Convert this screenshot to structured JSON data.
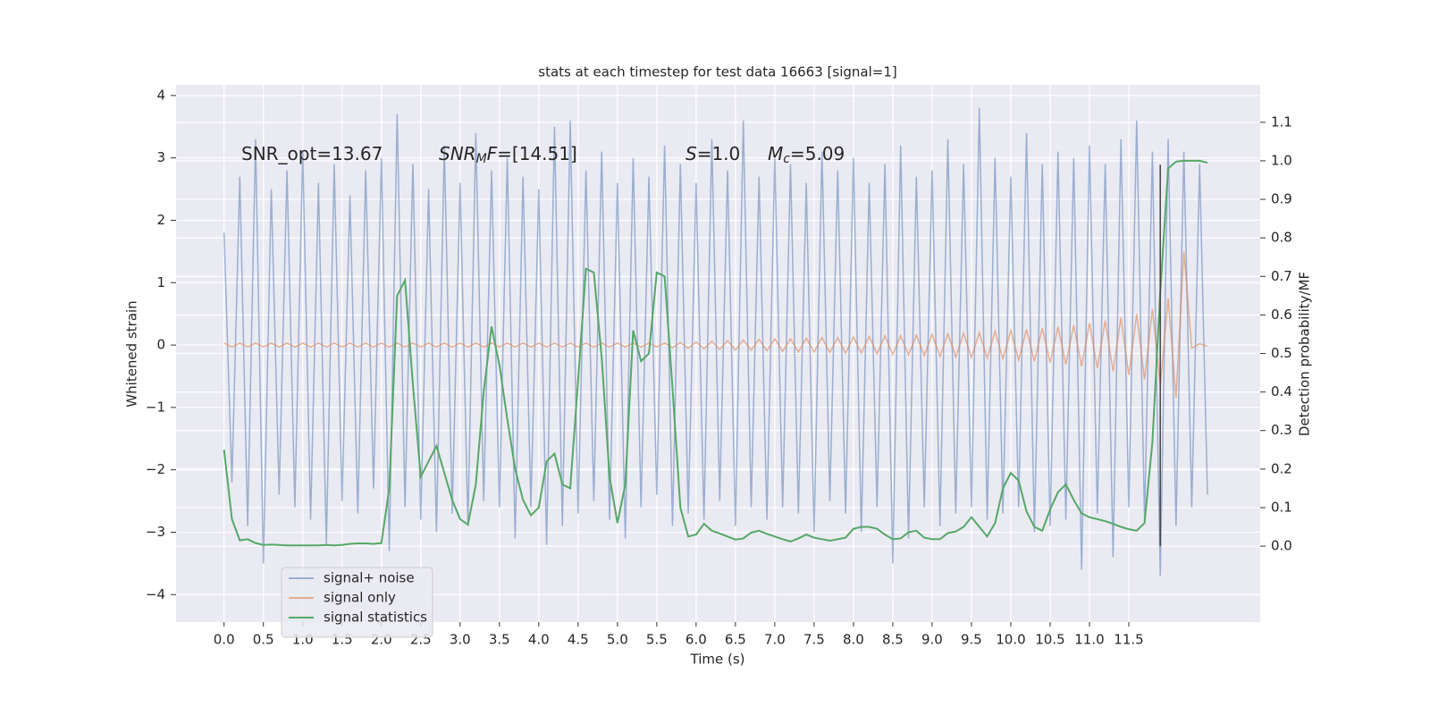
{
  "chart_data": {
    "type": "line",
    "title": "stats at each timestep for test data 16663 [signal=1]",
    "xlabel": "Time (s)",
    "ylabel": "Whitened strain",
    "y2label": "Detection probability/MF",
    "x": [
      0.0,
      0.1,
      0.2,
      0.3,
      0.4,
      0.5,
      0.6,
      0.7,
      0.8,
      0.9,
      1.0,
      1.1,
      1.2,
      1.3,
      1.4,
      1.5,
      1.6,
      1.7,
      1.8,
      1.9,
      2.0,
      2.1,
      2.2,
      2.3,
      2.4,
      2.5,
      2.6,
      2.7,
      2.8,
      2.9,
      3.0,
      3.1,
      3.2,
      3.3,
      3.4,
      3.5,
      3.6,
      3.7,
      3.8,
      3.9,
      4.0,
      4.1,
      4.2,
      4.3,
      4.4,
      4.5,
      4.6,
      4.7,
      4.8,
      4.9,
      5.0,
      5.1,
      5.2,
      5.3,
      5.4,
      5.5,
      5.6,
      5.7,
      5.8,
      5.9,
      6.0,
      6.1,
      6.2,
      6.3,
      6.4,
      6.5,
      6.6,
      6.7,
      6.8,
      6.9,
      7.0,
      7.1,
      7.2,
      7.3,
      7.4,
      7.5,
      7.6,
      7.7,
      7.8,
      7.9,
      8.0,
      8.1,
      8.2,
      8.3,
      8.4,
      8.5,
      8.6,
      8.7,
      8.8,
      8.9,
      9.0,
      9.1,
      9.2,
      9.3,
      9.4,
      9.5,
      9.6,
      9.7,
      9.8,
      9.9,
      10.0,
      10.1,
      10.2,
      10.3,
      10.4,
      10.5,
      10.6,
      10.7,
      10.8,
      10.9,
      11.0,
      11.1,
      11.2,
      11.3,
      11.4,
      11.5,
      11.6,
      11.7,
      11.8,
      11.9,
      12.0,
      12.1,
      12.2,
      12.3,
      12.4,
      12.5
    ],
    "series": [
      {
        "name": "signal+ noise",
        "color": "#4c72b0",
        "opacity": 0.5,
        "values": [
          1.8,
          -2.2,
          2.7,
          -2.9,
          3.3,
          -3.5,
          2.5,
          -2.4,
          2.8,
          -2.6,
          3.1,
          -2.8,
          2.6,
          -3.2,
          2.9,
          -2.5,
          2.4,
          -2.7,
          2.8,
          -2.3,
          3.0,
          -3.3,
          3.7,
          -2.6,
          2.9,
          -2.8,
          2.5,
          -3.0,
          3.2,
          -2.7,
          2.6,
          -2.9,
          3.4,
          -2.5,
          2.8,
          -2.6,
          3.0,
          -3.1,
          2.7,
          -2.6,
          2.5,
          -3.2,
          3.5,
          -2.9,
          3.6,
          -2.7,
          2.8,
          -2.5,
          3.1,
          -2.8,
          2.6,
          -3.1,
          3.0,
          -2.6,
          2.7,
          -2.4,
          3.2,
          -2.9,
          2.9,
          -2.7,
          2.6,
          -2.8,
          3.3,
          -2.5,
          2.8,
          -2.9,
          3.6,
          -2.6,
          2.7,
          -2.8,
          3.0,
          -2.6,
          2.9,
          -2.7,
          2.6,
          -3.0,
          3.1,
          -2.5,
          2.8,
          -2.7,
          3.0,
          -3.0,
          2.6,
          -2.6,
          2.9,
          -3.5,
          3.2,
          -3.1,
          2.7,
          -2.6,
          2.8,
          -2.9,
          3.3,
          -2.7,
          2.9,
          -2.6,
          3.8,
          -2.8,
          3.0,
          -2.7,
          2.7,
          -2.6,
          3.4,
          -3.0,
          2.9,
          -2.9,
          3.1,
          -2.8,
          3.0,
          -3.6,
          3.2,
          -2.7,
          2.9,
          -3.4,
          3.3,
          -2.6,
          3.6,
          -2.8,
          3.1,
          -3.7,
          3.3,
          -2.9,
          3.1,
          -2.6,
          2.9,
          -2.4
        ]
      },
      {
        "name": "signal only",
        "color": "#dd8452",
        "opacity": 0.6,
        "values": [
          0.03,
          -0.03,
          0.03,
          -0.03,
          0.03,
          -0.03,
          0.03,
          -0.03,
          0.03,
          -0.03,
          0.03,
          -0.03,
          0.03,
          -0.03,
          0.03,
          -0.03,
          0.03,
          -0.03,
          0.03,
          -0.03,
          0.03,
          -0.03,
          0.03,
          -0.03,
          0.03,
          -0.03,
          0.03,
          -0.03,
          0.03,
          -0.03,
          0.03,
          -0.03,
          0.03,
          -0.03,
          0.03,
          -0.03,
          0.03,
          -0.03,
          0.03,
          -0.03,
          0.03,
          -0.03,
          0.03,
          -0.03,
          0.03,
          -0.03,
          0.03,
          -0.03,
          0.03,
          -0.03,
          0.03,
          -0.03,
          0.03,
          -0.03,
          0.03,
          -0.03,
          0.03,
          -0.04,
          0.04,
          -0.05,
          0.05,
          -0.06,
          0.06,
          -0.07,
          0.07,
          -0.08,
          0.08,
          -0.08,
          0.09,
          -0.09,
          0.1,
          -0.1,
          0.1,
          -0.11,
          0.11,
          -0.11,
          0.12,
          -0.12,
          0.12,
          -0.13,
          0.13,
          -0.13,
          0.14,
          -0.14,
          0.15,
          -0.15,
          0.15,
          -0.16,
          0.16,
          -0.17,
          0.17,
          -0.18,
          0.18,
          -0.19,
          0.19,
          -0.2,
          0.2,
          -0.21,
          0.22,
          -0.22,
          0.23,
          -0.24,
          0.25,
          -0.26,
          0.27,
          -0.28,
          0.29,
          -0.31,
          0.32,
          -0.34,
          0.35,
          -0.37,
          0.39,
          -0.42,
          0.44,
          -0.48,
          0.5,
          -0.55,
          0.58,
          -0.65,
          0.75,
          -0.85,
          1.5,
          -0.05,
          0.02,
          -0.02
        ]
      },
      {
        "name": "signal statistics",
        "color": "#55a868",
        "opacity": 1,
        "axis": "y2",
        "values": [
          0.25,
          0.07,
          0.015,
          0.018,
          0.008,
          0.003,
          0.004,
          0.003,
          0.002,
          0.002,
          0.002,
          0.002,
          0.002,
          0.003,
          0.002,
          0.003,
          0.006,
          0.007,
          0.007,
          0.006,
          0.008,
          0.15,
          0.65,
          0.69,
          0.42,
          0.18,
          0.22,
          0.26,
          0.19,
          0.12,
          0.07,
          0.056,
          0.16,
          0.4,
          0.57,
          0.47,
          0.33,
          0.2,
          0.12,
          0.08,
          0.1,
          0.22,
          0.24,
          0.16,
          0.15,
          0.43,
          0.72,
          0.71,
          0.49,
          0.18,
          0.06,
          0.16,
          0.56,
          0.48,
          0.5,
          0.71,
          0.7,
          0.41,
          0.1,
          0.025,
          0.03,
          0.058,
          0.04,
          0.033,
          0.025,
          0.017,
          0.02,
          0.035,
          0.04,
          0.032,
          0.025,
          0.018,
          0.012,
          0.02,
          0.03,
          0.022,
          0.018,
          0.014,
          0.018,
          0.022,
          0.045,
          0.05,
          0.05,
          0.045,
          0.03,
          0.018,
          0.02,
          0.036,
          0.04,
          0.022,
          0.018,
          0.018,
          0.034,
          0.038,
          0.05,
          0.075,
          0.05,
          0.025,
          0.06,
          0.15,
          0.19,
          0.17,
          0.09,
          0.05,
          0.04,
          0.095,
          0.14,
          0.16,
          0.12,
          0.085,
          0.075,
          0.07,
          0.065,
          0.058,
          0.05,
          0.044,
          0.04,
          0.06,
          0.27,
          0.66,
          0.98,
          0.998,
          1.0,
          1.0,
          1.0,
          0.995
        ]
      }
    ],
    "vline": {
      "x": 11.9,
      "y2range": [
        0.0,
        0.99
      ],
      "color": "#444444"
    },
    "annotations": [
      {
        "parts": [
          {
            "text": "SNR_opt=13.67"
          }
        ]
      },
      {
        "parts": [
          {
            "text": "SNR",
            "italic": true
          },
          {
            "text": "M",
            "italic": true,
            "sub": true
          },
          {
            "text": "F",
            "italic": true
          },
          {
            "text": "=[14.51]"
          }
        ]
      },
      {
        "parts": [
          {
            "text": "S",
            "italic": true
          },
          {
            "text": "=1.0"
          }
        ]
      },
      {
        "parts": [
          {
            "text": "M",
            "italic": true
          },
          {
            "text": "c",
            "italic": true,
            "sub": true
          },
          {
            "text": "=5.09"
          }
        ]
      }
    ],
    "xlim": [
      -0.61,
      13.17
    ],
    "ylim": [
      -4.44,
      4.17
    ],
    "y2lim": [
      -0.197,
      1.197
    ],
    "xticks": [
      {
        "value": 0,
        "label": "0.0"
      },
      0.5,
      {
        "value": 1,
        "label": "1.0"
      },
      1.5,
      {
        "value": 2,
        "label": "2.0"
      },
      2.5,
      {
        "value": 3,
        "label": "3.0"
      },
      3.5,
      {
        "value": 4,
        "label": "4.0"
      },
      4.5,
      {
        "value": 5,
        "label": "5.0"
      },
      5.5,
      {
        "value": 6,
        "label": "6.0"
      },
      6.5,
      {
        "value": 7,
        "label": "7.0"
      },
      7.5,
      {
        "value": 8,
        "label": "8.0"
      },
      8.5,
      {
        "value": 9,
        "label": "9.0"
      },
      9.5,
      {
        "value": 10,
        "label": "10.0"
      },
      10.5,
      {
        "value": 11,
        "label": "11.0"
      },
      11.5
    ],
    "yticks": [
      {
        "value": -4,
        "label": "−4"
      },
      {
        "value": -3,
        "label": "−3"
      },
      {
        "value": -2,
        "label": "−2"
      },
      {
        "value": -1,
        "label": "−1"
      },
      0,
      1,
      2,
      3,
      4
    ],
    "y2ticks": [
      {
        "value": 0,
        "label": "0.0"
      },
      0.1,
      0.2,
      0.3,
      0.4,
      0.5,
      0.6,
      0.7,
      0.8,
      0.9,
      {
        "value": 1,
        "label": "1.0"
      },
      1.1
    ],
    "grid": true,
    "background": "#eaeaf2",
    "legend": "lower left"
  }
}
